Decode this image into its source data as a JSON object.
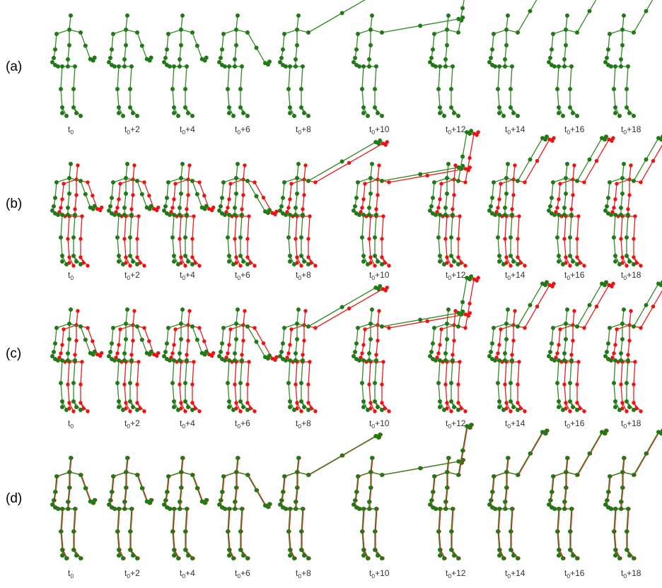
{
  "colors": {
    "pose_a": "#2e8b22",
    "pose_b": "#f01a1a",
    "joint_a": "#1f7a16",
    "joint_b": "#ee1111"
  },
  "rows": [
    {
      "label": "(a)",
      "overlay": false
    },
    {
      "label": "(b)",
      "overlay": true
    },
    {
      "label": "(c)",
      "overlay": true
    },
    {
      "label": "(d)",
      "overlay": true
    }
  ],
  "frames": [
    {
      "base": "t",
      "sub": "0",
      "suffix": ""
    },
    {
      "base": "t",
      "sub": "0",
      "suffix": "+2"
    },
    {
      "base": "t",
      "sub": "0",
      "suffix": "+4"
    },
    {
      "base": "t",
      "sub": "0",
      "suffix": "+6"
    },
    {
      "base": "t",
      "sub": "0",
      "suffix": "+8"
    },
    {
      "base": "t",
      "sub": "0",
      "suffix": "+10"
    },
    {
      "base": "t",
      "sub": "0",
      "suffix": "+12"
    },
    {
      "base": "t",
      "sub": "0",
      "suffix": "+14"
    },
    {
      "base": "t",
      "sub": "0",
      "suffix": "+16"
    },
    {
      "base": "t",
      "sub": "0",
      "suffix": "+18"
    }
  ]
}
